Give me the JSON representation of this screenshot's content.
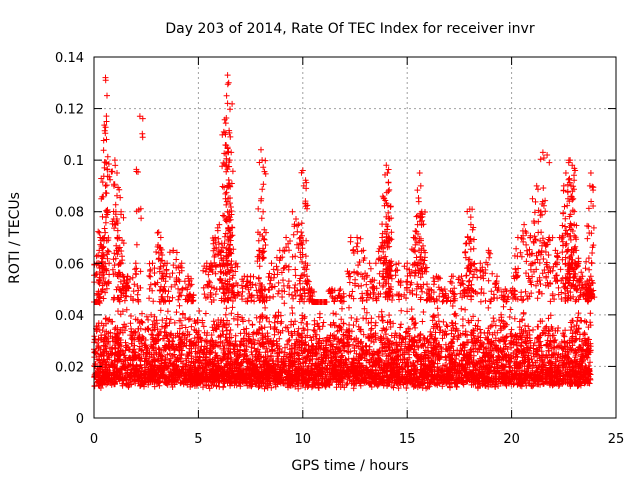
{
  "chart_data": {
    "type": "scatter",
    "title": "Day 203 of 2014, Rate Of TEC Index for receiver invr",
    "xlabel": "GPS time / hours",
    "ylabel": "ROTI / TECUs",
    "xlim": [
      0,
      25
    ],
    "ylim": [
      0,
      0.14
    ],
    "x_ticks": [
      0,
      5,
      10,
      15,
      20,
      25
    ],
    "x_tick_labels": [
      "0",
      "5",
      "10",
      "15",
      "20",
      "25"
    ],
    "y_ticks": [
      0,
      0.02,
      0.04,
      0.06,
      0.08,
      0.1,
      0.12,
      0.14
    ],
    "y_tick_labels": [
      "0",
      "0.02",
      "0.04",
      "0.06",
      "0.08",
      "0.1",
      "0.12",
      "0.14"
    ],
    "grid": true,
    "marker": "+",
    "series": [
      {
        "name": "ROTI",
        "color": "#ff0000",
        "x_range_hours": [
          0,
          23.8
        ],
        "baseline_range": [
          0.005,
          0.045
        ],
        "points": [
          [
            0.55,
            0.132
          ],
          [
            0.6,
            0.115
          ],
          [
            0.6,
            0.108
          ],
          [
            0.5,
            0.097
          ],
          [
            0.55,
            0.09
          ],
          [
            0.35,
            0.085
          ],
          [
            0.3,
            0.07
          ],
          [
            0.25,
            0.065
          ],
          [
            0.15,
            0.06
          ],
          [
            0.1,
            0.045
          ],
          [
            1.0,
            0.1
          ],
          [
            1.1,
            0.095
          ],
          [
            1.05,
            0.08
          ],
          [
            1.3,
            0.08
          ],
          [
            1.2,
            0.07
          ],
          [
            1.4,
            0.055
          ],
          [
            1.6,
            0.055
          ],
          [
            2.2,
            0.117
          ],
          [
            2.0,
            0.06
          ],
          [
            2.8,
            0.06
          ],
          [
            3.1,
            0.072
          ],
          [
            3.2,
            0.07
          ],
          [
            3.5,
            0.06
          ],
          [
            3.3,
            0.05
          ],
          [
            3.8,
            0.065
          ],
          [
            4.2,
            0.06
          ],
          [
            4.5,
            0.055
          ],
          [
            4.6,
            0.048
          ],
          [
            5.4,
            0.06
          ],
          [
            5.6,
            0.06
          ],
          [
            5.8,
            0.07
          ],
          [
            6.0,
            0.075
          ],
          [
            6.1,
            0.065
          ],
          [
            6.4,
            0.133
          ],
          [
            6.45,
            0.13
          ],
          [
            6.35,
            0.125
          ],
          [
            6.4,
            0.122
          ],
          [
            6.3,
            0.11
          ],
          [
            6.4,
            0.105
          ],
          [
            6.5,
            0.1
          ],
          [
            6.5,
            0.09
          ],
          [
            6.3,
            0.085
          ],
          [
            6.4,
            0.08
          ],
          [
            6.5,
            0.07
          ],
          [
            6.2,
            0.06
          ],
          [
            6.8,
            0.06
          ],
          [
            7.2,
            0.055
          ],
          [
            7.5,
            0.055
          ],
          [
            8.0,
            0.104
          ],
          [
            8.05,
            0.1
          ],
          [
            8.1,
            0.08
          ],
          [
            7.9,
            0.065
          ],
          [
            8.2,
            0.05
          ],
          [
            8.5,
            0.06
          ],
          [
            8.9,
            0.065
          ],
          [
            9.2,
            0.07
          ],
          [
            9.5,
            0.08
          ],
          [
            9.8,
            0.075
          ],
          [
            10.0,
            0.096
          ],
          [
            10.05,
            0.09
          ],
          [
            9.9,
            0.07
          ],
          [
            10.2,
            0.055
          ],
          [
            10.4,
            0.05
          ],
          [
            10.6,
            0.045
          ],
          [
            11.0,
            0.045
          ],
          [
            11.4,
            0.05
          ],
          [
            11.8,
            0.05
          ],
          [
            12.3,
            0.07
          ],
          [
            12.6,
            0.07
          ],
          [
            12.9,
            0.065
          ],
          [
            13.2,
            0.06
          ],
          [
            13.5,
            0.06
          ],
          [
            13.8,
            0.07
          ],
          [
            14.0,
            0.098
          ],
          [
            14.05,
            0.095
          ],
          [
            14.1,
            0.088
          ],
          [
            13.9,
            0.085
          ],
          [
            14.0,
            0.078
          ],
          [
            14.1,
            0.07
          ],
          [
            14.2,
            0.06
          ],
          [
            14.6,
            0.06
          ],
          [
            15.0,
            0.06
          ],
          [
            15.3,
            0.07
          ],
          [
            15.6,
            0.095
          ],
          [
            15.65,
            0.09
          ],
          [
            15.7,
            0.08
          ],
          [
            15.5,
            0.075
          ],
          [
            15.8,
            0.065
          ],
          [
            16.0,
            0.05
          ],
          [
            16.4,
            0.055
          ],
          [
            16.8,
            0.05
          ],
          [
            17.2,
            0.055
          ],
          [
            17.6,
            0.055
          ],
          [
            18.0,
            0.081
          ],
          [
            18.05,
            0.075
          ],
          [
            17.9,
            0.07
          ],
          [
            18.1,
            0.06
          ],
          [
            18.5,
            0.06
          ],
          [
            18.9,
            0.065
          ],
          [
            19.3,
            0.055
          ],
          [
            19.7,
            0.05
          ],
          [
            20.1,
            0.055
          ],
          [
            20.3,
            0.07
          ],
          [
            20.6,
            0.075
          ],
          [
            20.9,
            0.07
          ],
          [
            21.0,
            0.085
          ],
          [
            21.2,
            0.09
          ],
          [
            21.5,
            0.103
          ],
          [
            21.7,
            0.102
          ],
          [
            21.4,
            0.08
          ],
          [
            21.8,
            0.07
          ],
          [
            22.1,
            0.065
          ],
          [
            22.3,
            0.07
          ],
          [
            22.5,
            0.09
          ],
          [
            22.6,
            0.095
          ],
          [
            22.7,
            0.085
          ],
          [
            22.8,
            0.1
          ],
          [
            22.9,
            0.098
          ],
          [
            22.85,
            0.09
          ],
          [
            22.95,
            0.085
          ],
          [
            23.0,
            0.075
          ],
          [
            22.7,
            0.06
          ],
          [
            23.1,
            0.065
          ],
          [
            23.2,
            0.06
          ],
          [
            23.4,
            0.055
          ],
          [
            23.6,
            0.05
          ],
          [
            23.8,
            0.095
          ],
          [
            23.75,
            0.09
          ],
          [
            23.7,
            0.062
          ],
          [
            23.8,
            0.05
          ]
        ]
      }
    ]
  }
}
